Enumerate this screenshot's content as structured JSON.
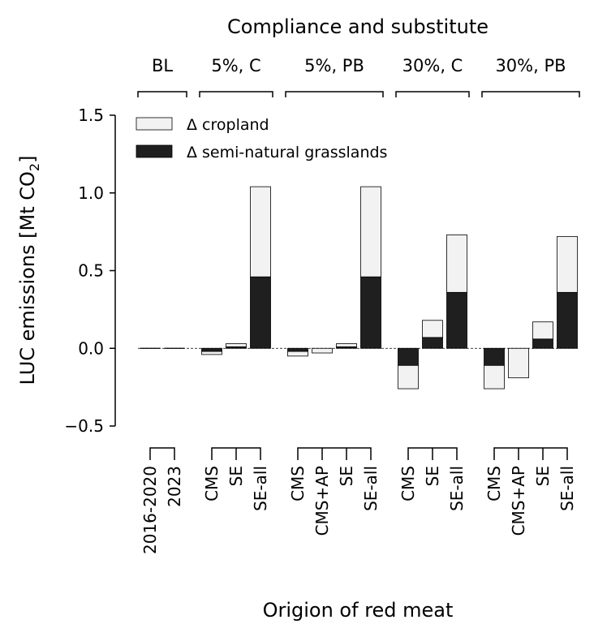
{
  "chart_data": {
    "type": "bar",
    "stacked": true,
    "title": "Compliance and substitute",
    "xlabel": "Origion of red meat",
    "ylabel": "LUC emissions [Mt CO",
    "ylabel_sub": "2",
    "ylabel_close": "]",
    "ylim": [
      -0.5,
      1.5
    ],
    "yticks": [
      -0.5,
      0.0,
      0.5,
      1.0,
      1.5
    ],
    "ytick_labels": [
      "−0.5",
      "0.0",
      "0.5",
      "1.0",
      "1.5"
    ],
    "grid": false,
    "zero_line": "dashed",
    "legend_position": "top-left",
    "colors": {
      "cropland": "#f2f2f2",
      "grassland": "#1f1f1f",
      "edge": "#000000"
    },
    "series": [
      {
        "name": "Δ cropland",
        "key": "cropland"
      },
      {
        "name": "Δ semi-natural grasslands",
        "key": "grassland"
      }
    ],
    "groups": [
      {
        "label": "BL",
        "bars": [
          {
            "x": "2016-2020",
            "cropland": 0.0,
            "grassland": 0.0
          },
          {
            "x": "2023",
            "cropland": 0.0,
            "grassland": 0.0
          }
        ]
      },
      {
        "label": "5%, C",
        "bars": [
          {
            "x": "CMS",
            "cropland": -0.02,
            "grassland": -0.02
          },
          {
            "x": "SE",
            "cropland": 0.02,
            "grassland": 0.01
          },
          {
            "x": "SE-all",
            "cropland": 0.58,
            "grassland": 0.46
          }
        ]
      },
      {
        "label": "5%, PB",
        "bars": [
          {
            "x": "CMS",
            "cropland": -0.03,
            "grassland": -0.02
          },
          {
            "x": "CMS+AP",
            "cropland": -0.03,
            "grassland": 0.0
          },
          {
            "x": "SE",
            "cropland": 0.02,
            "grassland": 0.01
          },
          {
            "x": "SE-all",
            "cropland": 0.58,
            "grassland": 0.46
          }
        ]
      },
      {
        "label": "30%, C",
        "bars": [
          {
            "x": "CMS",
            "cropland": -0.15,
            "grassland": -0.11
          },
          {
            "x": "SE",
            "cropland": 0.11,
            "grassland": 0.07
          },
          {
            "x": "SE-all",
            "cropland": 0.37,
            "grassland": 0.36
          }
        ]
      },
      {
        "label": "30%, PB",
        "bars": [
          {
            "x": "CMS",
            "cropland": -0.15,
            "grassland": -0.11
          },
          {
            "x": "CMS+AP",
            "cropland": -0.19,
            "grassland": 0.0
          },
          {
            "x": "SE",
            "cropland": 0.11,
            "grassland": 0.06
          },
          {
            "x": "SE-all",
            "cropland": 0.36,
            "grassland": 0.36
          }
        ]
      }
    ]
  }
}
